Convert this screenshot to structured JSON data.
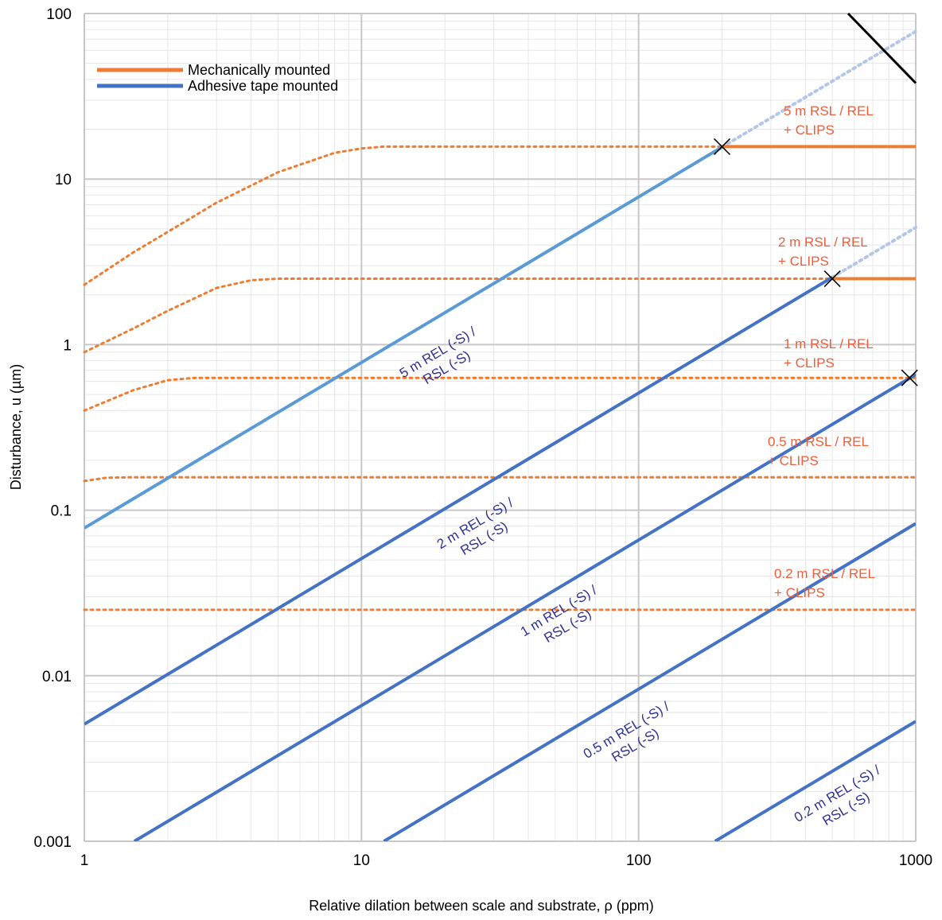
{
  "chart_data": {
    "type": "line",
    "xlabel": "Relative dilation between scale and substrate, ρ (ppm)",
    "ylabel": "Disturbance, u (µm)",
    "xscale": "log",
    "yscale": "log",
    "xlim": [
      1,
      1000
    ],
    "ylim": [
      0.001,
      100
    ],
    "grid": true,
    "x_ticks": [
      "1",
      "10",
      "100",
      "1000"
    ],
    "y_ticks": [
      "0.001",
      "0.01",
      "0.1",
      "1",
      "10",
      "100"
    ],
    "legend": {
      "position": "top-left",
      "entries": [
        {
          "label": "Mechanically mounted",
          "color": "#ed7d31"
        },
        {
          "label": "Adhesive tape mounted",
          "color": "#4472c4"
        }
      ]
    },
    "colors": {
      "mechanical": "#ed7d31",
      "adhesive": "#4472c4",
      "adhesive_5m": "#5b9bd5",
      "extension": "#b4c7e7",
      "limit": "#000000",
      "mechanical_label": "#ec5f3c",
      "adhesive_label": "#2e3192"
    },
    "mechanical_series": [
      {
        "label_lines": [
          "5 m RSL / REL",
          "+ CLIPS"
        ],
        "dotted_points": [
          [
            1,
            2.3
          ],
          [
            1.5,
            3.6
          ],
          [
            2,
            4.8
          ],
          [
            3,
            7.2
          ],
          [
            5,
            11
          ],
          [
            8,
            14.4
          ],
          [
            10,
            15.3
          ],
          [
            12,
            15.7
          ],
          [
            20,
            15.7
          ],
          [
            200,
            15.7
          ]
        ],
        "solid_from": 200,
        "plateau": 15.7
      },
      {
        "label_lines": [
          "2 m RSL / REL",
          "+ CLIPS"
        ],
        "dotted_points": [
          [
            1,
            0.9
          ],
          [
            1.5,
            1.25
          ],
          [
            2,
            1.6
          ],
          [
            3,
            2.2
          ],
          [
            4,
            2.45
          ],
          [
            5,
            2.5
          ],
          [
            500,
            2.5
          ]
        ],
        "solid_from": 500,
        "plateau": 2.5
      },
      {
        "label_lines": [
          "1 m RSL / REL",
          "+ CLIPS"
        ],
        "dotted_points": [
          [
            1,
            0.4
          ],
          [
            1.5,
            0.53
          ],
          [
            2,
            0.61
          ],
          [
            2.5,
            0.63
          ],
          [
            1000,
            0.63
          ]
        ],
        "solid_from": null,
        "plateau": 0.63
      },
      {
        "label_lines": [
          "0.5 m RSL / REL",
          "+ CLIPS"
        ],
        "dotted_points": [
          [
            1,
            0.15
          ],
          [
            1.2,
            0.157
          ],
          [
            1.5,
            0.158
          ],
          [
            1000,
            0.158
          ]
        ],
        "solid_from": null,
        "plateau": 0.158
      },
      {
        "label_lines": [
          "0.2 m RSL / REL",
          "+ CLIPS"
        ],
        "dotted_points": [
          [
            1,
            0.025
          ],
          [
            1000,
            0.025
          ]
        ],
        "solid_from": null,
        "plateau": 0.025
      }
    ],
    "adhesive_series": [
      {
        "label_lines": [
          "5 m REL (-S) /",
          "RSL (-S)"
        ],
        "coeff": 0.078,
        "solid_to": 200,
        "dotted_to": 1000
      },
      {
        "label_lines": [
          "2 m REL (-S) /",
          "RSL (-S)"
        ],
        "coeff": 0.0051,
        "solid_to": 500,
        "dotted_to": 1000
      },
      {
        "label_lines": [
          "1 m REL (-S) /",
          "RSL (-S)"
        ],
        "coeff": 0.00066,
        "solid_to": 1000,
        "dotted_to": null
      },
      {
        "label_lines": [
          "0.5 m REL (-S) /",
          "RSL (-S)"
        ],
        "coeff": 8.3e-05,
        "solid_to": 1000,
        "dotted_to": null
      },
      {
        "label_lines": [
          "0.2 m REL (-S) /",
          "RSL (-S)"
        ],
        "coeff": 5.3e-06,
        "solid_to": 1000,
        "dotted_to": null
      }
    ],
    "intersections": [
      [
        200,
        15.7
      ],
      [
        500,
        2.5
      ],
      [
        950,
        0.63
      ]
    ],
    "limit_line": [
      [
        570,
        100
      ],
      [
        1000,
        38
      ]
    ]
  }
}
